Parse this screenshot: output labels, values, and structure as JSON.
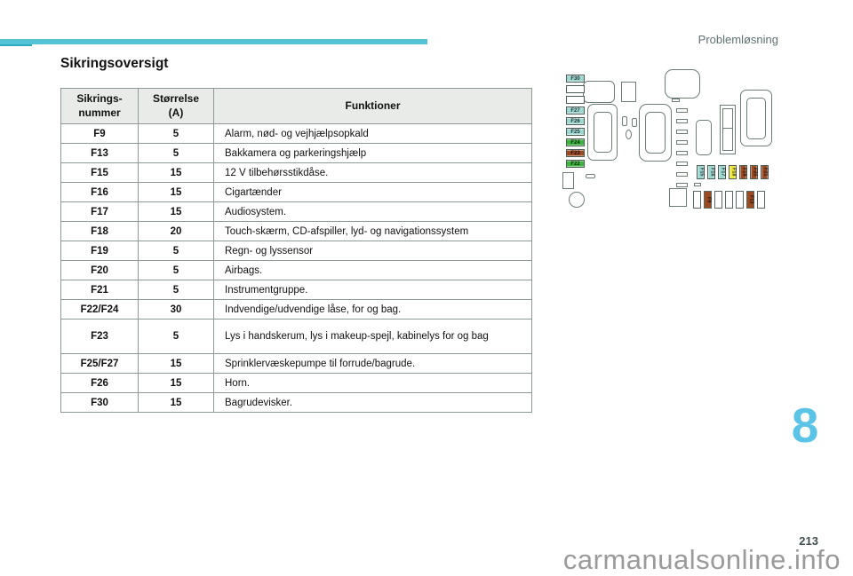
{
  "page": {
    "header_label": "Problemløsning",
    "title": "Sikringsoversigt",
    "chapter_number": "8",
    "page_number": "213",
    "watermark": "carmanualsonline.info",
    "accent_color": "#55c3d6",
    "accent_color_dark": "#2ea9c0",
    "chapter_color": "#5bc4e6"
  },
  "table": {
    "headers": [
      "Sikrings-\nnummer",
      "Størrelse\n(A)",
      "Funktioner"
    ],
    "rows": [
      {
        "fuse": "F9",
        "amps": "5",
        "function": "Alarm, nød- og vejhjælpsopkald"
      },
      {
        "fuse": "F13",
        "amps": "5",
        "function": "Bakkamera og parkeringshjælp"
      },
      {
        "fuse": "F15",
        "amps": "15",
        "function": "12 V tilbehørsstikdåse."
      },
      {
        "fuse": "F16",
        "amps": "15",
        "function": "Cigartænder"
      },
      {
        "fuse": "F17",
        "amps": "15",
        "function": "Audiosystem."
      },
      {
        "fuse": "F18",
        "amps": "20",
        "function": "Touch-skærm, CD-afspiller, lyd- og navigationssystem"
      },
      {
        "fuse": "F19",
        "amps": "5",
        "function": "Regn- og lyssensor"
      },
      {
        "fuse": "F20",
        "amps": "5",
        "function": "Airbags."
      },
      {
        "fuse": "F21",
        "amps": "5",
        "function": "Instrumentgruppe."
      },
      {
        "fuse": "F22/F24",
        "amps": "30",
        "function": "Indvendige/udvendige låse, for og bag."
      },
      {
        "fuse": "F23",
        "amps": "5",
        "function": "Lys i handskerum, lys i makeup-spejl, kabinelys for og bag",
        "tall": true
      },
      {
        "fuse": "F25/F27",
        "amps": "15",
        "function": "Sprinklervæskepumpe til forrude/bagrude."
      },
      {
        "fuse": "F26",
        "amps": "15",
        "function": "Horn."
      },
      {
        "fuse": "F30",
        "amps": "15",
        "function": "Bagrudevisker."
      }
    ]
  },
  "diagram": {
    "colors": {
      "cyan": "#9ed8d3",
      "green": "#3eb440",
      "brown": "#9c4a22",
      "yellow": "#efe83e",
      "blank": "#ffffff"
    },
    "left_column_fuses": [
      {
        "label": "F30",
        "color": "cyan"
      },
      {
        "label": "",
        "color": "blank"
      },
      {
        "label": "",
        "color": "blank"
      },
      {
        "label": "F27",
        "color": "cyan"
      },
      {
        "label": "F26",
        "color": "cyan"
      },
      {
        "label": "F25",
        "color": "cyan"
      },
      {
        "label": "F24",
        "color": "green"
      },
      {
        "label": "F23",
        "color": "brown"
      },
      {
        "label": "F22",
        "color": "green"
      }
    ],
    "middle_row_fuses": [
      {
        "label": "F15",
        "color": "cyan"
      },
      {
        "label": "F16",
        "color": "cyan"
      },
      {
        "label": "F17",
        "color": "cyan"
      },
      {
        "label": "F18",
        "color": "yellow"
      },
      {
        "label": "F19",
        "color": "brown"
      },
      {
        "label": "F20",
        "color": "brown"
      },
      {
        "label": "F21",
        "color": "brown"
      }
    ],
    "bottom_row_fuses": [
      {
        "label": "",
        "color": "blank"
      },
      {
        "label": "F9",
        "color": "brown"
      },
      {
        "label": "",
        "color": "blank"
      },
      {
        "label": "",
        "color": "blank"
      },
      {
        "label": "",
        "color": "blank"
      },
      {
        "label": "F13",
        "color": "brown"
      },
      {
        "label": "",
        "color": "blank"
      }
    ]
  }
}
